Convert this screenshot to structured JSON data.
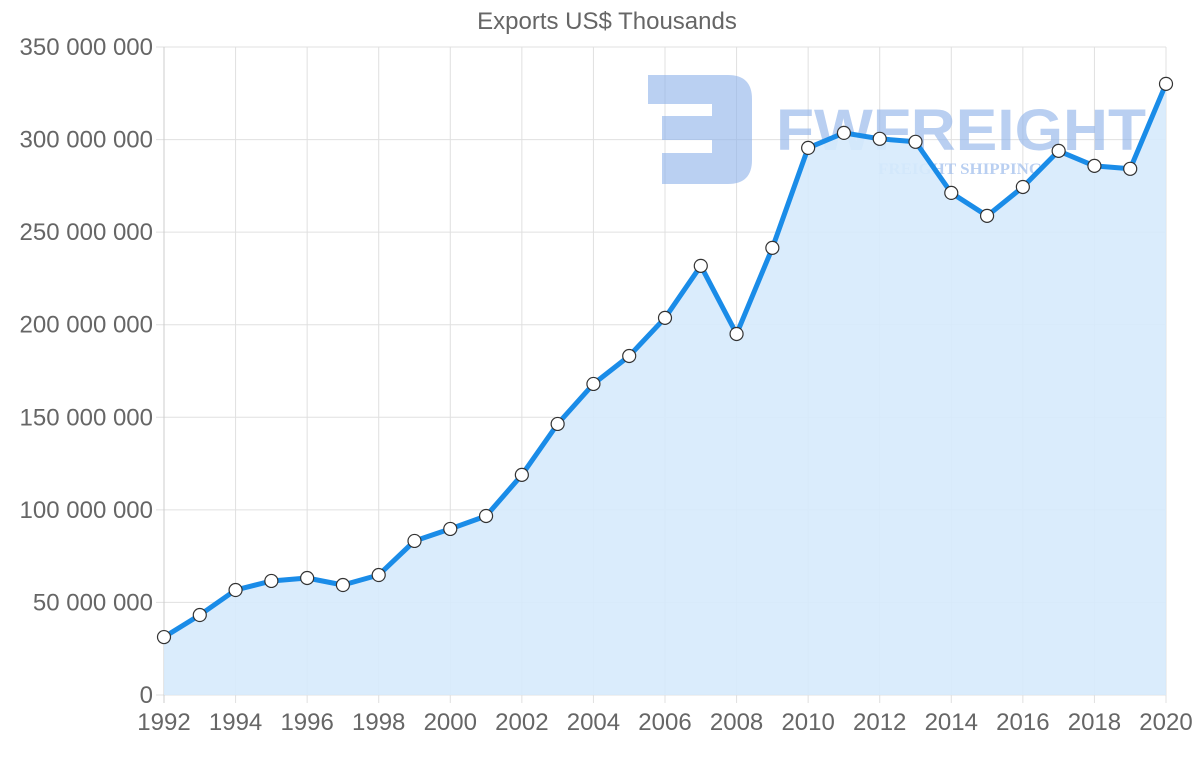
{
  "chart_data": {
    "type": "area",
    "title": "Exports US$ Thousands",
    "xlabel": "",
    "ylabel": "",
    "x": [
      1992,
      1993,
      1994,
      1995,
      1996,
      1997,
      1998,
      1999,
      2000,
      2001,
      2002,
      2003,
      2004,
      2005,
      2006,
      2007,
      2008,
      2009,
      2010,
      2011,
      2012,
      2013,
      2014,
      2015,
      2016,
      2017,
      2018,
      2019,
      2020
    ],
    "series": [
      {
        "name": "Exports US$ Thousands",
        "values": [
          31300000,
          43200000,
          56700000,
          61600000,
          63200000,
          59400000,
          64800000,
          83200000,
          89700000,
          96700000,
          118900000,
          146400000,
          168000000,
          183100000,
          203700000,
          231800000,
          195000000,
          241500000,
          295500000,
          303600000,
          300400000,
          298800000,
          271200000,
          258800000,
          274400000,
          293900000,
          285800000,
          284200000,
          330100000
        ]
      }
    ],
    "ylim": [
      0,
      350000000
    ],
    "y_ticks": [
      "0",
      "50 000 000",
      "100 000 000",
      "150 000 000",
      "200 000 000",
      "250 000 000",
      "300 000 000",
      "350 000 000"
    ],
    "x_ticks": [
      "1992",
      "1994",
      "1996",
      "1998",
      "2000",
      "2002",
      "2004",
      "2006",
      "2008",
      "2010",
      "2012",
      "2014",
      "2016",
      "2018",
      "2020"
    ],
    "grid": true,
    "legend": null,
    "colors": {
      "line": "#1a8ce8",
      "fill": "#d6eafc",
      "marker_fill": "#ffffff",
      "marker_stroke": "#333333",
      "grid": "#e0e0e0",
      "tick_text": "#666666"
    }
  },
  "watermark": {
    "brand": "FWFREIGHT",
    "tagline": "FREIGHT SHIPPING",
    "color": "#8fb3ea"
  }
}
